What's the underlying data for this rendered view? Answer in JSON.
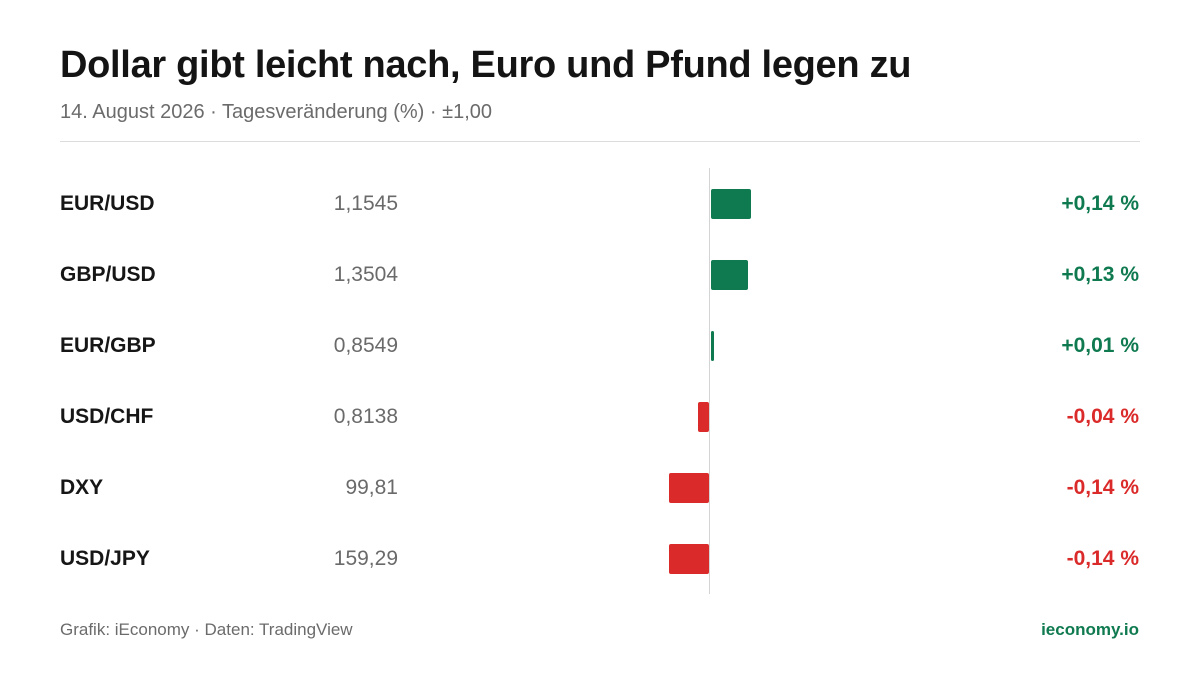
{
  "title": "Dollar gibt leicht nach, Euro und Pfund legen zu",
  "subtitle": "14. August 2026 · Tagesveränderung (%) · ±1,00",
  "footer": {
    "source": "Grafik: iEconomy · Daten: TradingView",
    "brand": "ieconomy.io"
  },
  "colors": {
    "positive": "#0f7a50",
    "negative": "#db2a2a"
  },
  "chart_data": {
    "type": "bar",
    "orientation": "horizontal",
    "xlim": [
      -1.0,
      1.0
    ],
    "grid": false,
    "categories": [
      "EUR/USD",
      "GBP/USD",
      "EUR/GBP",
      "USD/CHF",
      "DXY",
      "USD/JPY"
    ],
    "rows": [
      {
        "pair": "EUR/USD",
        "price": "1,1545",
        "change": 0.14,
        "label": "+0,14 %"
      },
      {
        "pair": "GBP/USD",
        "price": "1,3504",
        "change": 0.13,
        "label": "+0,13 %"
      },
      {
        "pair": "EUR/GBP",
        "price": "0,8549",
        "change": 0.01,
        "label": "+0,01 %"
      },
      {
        "pair": "USD/CHF",
        "price": "0,8138",
        "change": -0.04,
        "label": "-0,04 %"
      },
      {
        "pair": "DXY",
        "price": "99,81",
        "change": -0.14,
        "label": "-0,14 %"
      },
      {
        "pair": "USD/JPY",
        "price": "159,29",
        "change": -0.14,
        "label": "-0,14 %"
      }
    ]
  }
}
